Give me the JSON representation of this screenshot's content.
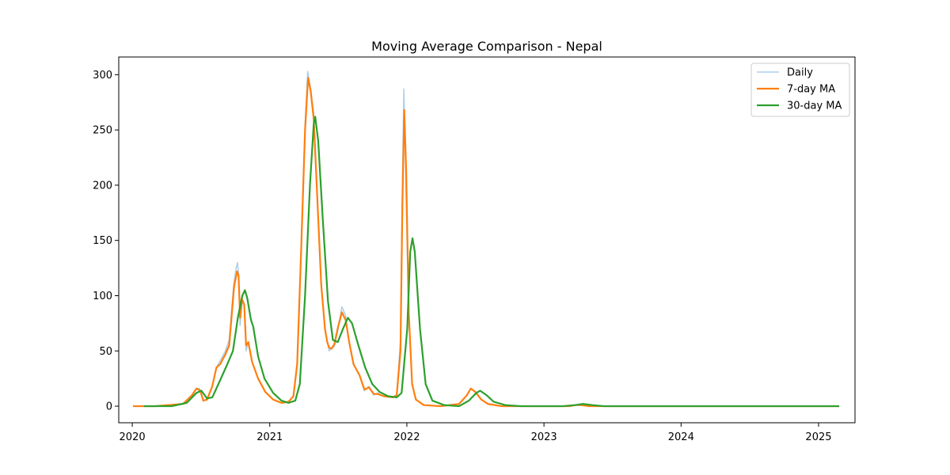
{
  "chart_data": {
    "type": "line",
    "title": "Moving Average Comparison - Nepal",
    "xlabel": "",
    "ylabel": "",
    "x_ticks": [
      "2020",
      "2021",
      "2022",
      "2023",
      "2024",
      "2025"
    ],
    "y_ticks": [
      0,
      50,
      100,
      150,
      200,
      250,
      300
    ],
    "xlim": [
      "2019-11-26",
      "2025-04-08"
    ],
    "ylim": [
      -15,
      316
    ],
    "grid": false,
    "legend_position": "top-right",
    "series": [
      {
        "name": "Daily",
        "color": "#aecde8",
        "points": [
          [
            "2020-01-03",
            0
          ],
          [
            "2020-03-01",
            0
          ],
          [
            "2020-05-15",
            2
          ],
          [
            "2020-06-10",
            10
          ],
          [
            "2020-06-20",
            16
          ],
          [
            "2020-06-28",
            16
          ],
          [
            "2020-07-08",
            5
          ],
          [
            "2020-07-18",
            6
          ],
          [
            "2020-08-01",
            18
          ],
          [
            "2020-08-12",
            35
          ],
          [
            "2020-08-25",
            43
          ],
          [
            "2020-09-05",
            50
          ],
          [
            "2020-09-15",
            60
          ],
          [
            "2020-09-27",
            110
          ],
          [
            "2020-10-03",
            124
          ],
          [
            "2020-10-07",
            130
          ],
          [
            "2020-10-10",
            120
          ],
          [
            "2020-10-14",
            73
          ],
          [
            "2020-10-20",
            95
          ],
          [
            "2020-10-25",
            92
          ],
          [
            "2020-10-30",
            50
          ],
          [
            "2020-11-05",
            58
          ],
          [
            "2020-11-15",
            40
          ],
          [
            "2020-12-01",
            25
          ],
          [
            "2020-12-20",
            13
          ],
          [
            "2021-01-10",
            6
          ],
          [
            "2021-02-01",
            3
          ],
          [
            "2021-02-20",
            4
          ],
          [
            "2021-03-05",
            9
          ],
          [
            "2021-03-15",
            40
          ],
          [
            "2021-03-25",
            140
          ],
          [
            "2021-04-05",
            255
          ],
          [
            "2021-04-12",
            303
          ],
          [
            "2021-04-20",
            287
          ],
          [
            "2021-04-28",
            265
          ],
          [
            "2021-05-08",
            185
          ],
          [
            "2021-05-18",
            110
          ],
          [
            "2021-05-28",
            70
          ],
          [
            "2021-06-03",
            60
          ],
          [
            "2021-06-08",
            50
          ],
          [
            "2021-06-14",
            52
          ],
          [
            "2021-06-22",
            54
          ],
          [
            "2021-07-02",
            70
          ],
          [
            "2021-07-12",
            90
          ],
          [
            "2021-07-22",
            82
          ],
          [
            "2021-08-01",
            57
          ],
          [
            "2021-08-12",
            38
          ],
          [
            "2021-08-28",
            28
          ],
          [
            "2021-09-10",
            14
          ],
          [
            "2021-09-22",
            18
          ],
          [
            "2021-10-05",
            10
          ],
          [
            "2021-10-15",
            12
          ],
          [
            "2021-11-01",
            9
          ],
          [
            "2021-11-25",
            8
          ],
          [
            "2021-12-05",
            10
          ],
          [
            "2021-12-15",
            60
          ],
          [
            "2021-12-20",
            200
          ],
          [
            "2021-12-24",
            287
          ],
          [
            "2021-12-28",
            225
          ],
          [
            "2022-01-05",
            90
          ],
          [
            "2022-01-15",
            20
          ],
          [
            "2022-01-25",
            6
          ],
          [
            "2022-02-15",
            1
          ],
          [
            "2022-04-01",
            0
          ],
          [
            "2022-05-20",
            2
          ],
          [
            "2022-06-10",
            10
          ],
          [
            "2022-06-20",
            16
          ],
          [
            "2022-07-02",
            13
          ],
          [
            "2022-07-18",
            6
          ],
          [
            "2022-08-05",
            2
          ],
          [
            "2022-09-10",
            0
          ],
          [
            "2023-03-10",
            0
          ],
          [
            "2023-03-25",
            1
          ],
          [
            "2023-04-10",
            1
          ],
          [
            "2023-05-01",
            0
          ],
          [
            "2025-02-25",
            0
          ]
        ]
      },
      {
        "name": "7-day MA",
        "color": "#ff7f0e",
        "points": [
          [
            "2020-01-03",
            0
          ],
          [
            "2020-03-01",
            0
          ],
          [
            "2020-05-15",
            2
          ],
          [
            "2020-06-08",
            10
          ],
          [
            "2020-06-20",
            16
          ],
          [
            "2020-06-30",
            14
          ],
          [
            "2020-07-08",
            5
          ],
          [
            "2020-07-18",
            6
          ],
          [
            "2020-08-01",
            18
          ],
          [
            "2020-08-12",
            35
          ],
          [
            "2020-08-22",
            38
          ],
          [
            "2020-09-05",
            47
          ],
          [
            "2020-09-15",
            55
          ],
          [
            "2020-09-28",
            108
          ],
          [
            "2020-10-06",
            122
          ],
          [
            "2020-10-10",
            118
          ],
          [
            "2020-10-14",
            80
          ],
          [
            "2020-10-19",
            97
          ],
          [
            "2020-10-25",
            92
          ],
          [
            "2020-10-30",
            55
          ],
          [
            "2020-11-05",
            58
          ],
          [
            "2020-11-15",
            40
          ],
          [
            "2020-12-01",
            25
          ],
          [
            "2020-12-20",
            13
          ],
          [
            "2021-01-10",
            6
          ],
          [
            "2021-02-01",
            3
          ],
          [
            "2021-02-20",
            4
          ],
          [
            "2021-03-05",
            9
          ],
          [
            "2021-03-15",
            38
          ],
          [
            "2021-03-25",
            135
          ],
          [
            "2021-04-05",
            250
          ],
          [
            "2021-04-13",
            297
          ],
          [
            "2021-04-20",
            285
          ],
          [
            "2021-04-28",
            260
          ],
          [
            "2021-05-08",
            185
          ],
          [
            "2021-05-18",
            110
          ],
          [
            "2021-05-28",
            70
          ],
          [
            "2021-06-03",
            58
          ],
          [
            "2021-06-08",
            53
          ],
          [
            "2021-06-14",
            52
          ],
          [
            "2021-06-22",
            56
          ],
          [
            "2021-07-02",
            72
          ],
          [
            "2021-07-12",
            85
          ],
          [
            "2021-07-22",
            78
          ],
          [
            "2021-08-01",
            57
          ],
          [
            "2021-08-12",
            38
          ],
          [
            "2021-08-28",
            28
          ],
          [
            "2021-09-10",
            15
          ],
          [
            "2021-09-22",
            17
          ],
          [
            "2021-10-05",
            11
          ],
          [
            "2021-10-15",
            11
          ],
          [
            "2021-11-01",
            9
          ],
          [
            "2021-11-25",
            8
          ],
          [
            "2021-12-05",
            10
          ],
          [
            "2021-12-15",
            50
          ],
          [
            "2021-12-20",
            180
          ],
          [
            "2021-12-25",
            268
          ],
          [
            "2021-12-30",
            215
          ],
          [
            "2022-01-06",
            85
          ],
          [
            "2022-01-15",
            20
          ],
          [
            "2022-01-25",
            6
          ],
          [
            "2022-02-15",
            1
          ],
          [
            "2022-04-01",
            0
          ],
          [
            "2022-05-20",
            2
          ],
          [
            "2022-06-10",
            10
          ],
          [
            "2022-06-20",
            16
          ],
          [
            "2022-07-02",
            13
          ],
          [
            "2022-07-18",
            6
          ],
          [
            "2022-08-05",
            2
          ],
          [
            "2022-09-10",
            0
          ],
          [
            "2023-03-10",
            0
          ],
          [
            "2023-03-25",
            1
          ],
          [
            "2023-04-10",
            1
          ],
          [
            "2023-05-01",
            0
          ],
          [
            "2025-02-25",
            0
          ]
        ]
      },
      {
        "name": "30-day MA",
        "color": "#2ca02c",
        "points": [
          [
            "2020-02-01",
            0
          ],
          [
            "2020-04-15",
            0
          ],
          [
            "2020-05-25",
            3
          ],
          [
            "2020-06-20",
            12
          ],
          [
            "2020-07-03",
            14
          ],
          [
            "2020-07-18",
            7
          ],
          [
            "2020-08-01",
            8
          ],
          [
            "2020-08-20",
            22
          ],
          [
            "2020-09-10",
            38
          ],
          [
            "2020-09-25",
            50
          ],
          [
            "2020-10-08",
            80
          ],
          [
            "2020-10-20",
            100
          ],
          [
            "2020-10-27",
            105
          ],
          [
            "2020-11-02",
            98
          ],
          [
            "2020-11-12",
            78
          ],
          [
            "2020-11-18",
            72
          ],
          [
            "2020-12-01",
            45
          ],
          [
            "2020-12-18",
            25
          ],
          [
            "2021-01-10",
            12
          ],
          [
            "2021-02-01",
            5
          ],
          [
            "2021-02-20",
            3
          ],
          [
            "2021-03-10",
            5
          ],
          [
            "2021-03-22",
            20
          ],
          [
            "2021-04-05",
            100
          ],
          [
            "2021-04-18",
            200
          ],
          [
            "2021-04-28",
            255
          ],
          [
            "2021-05-02",
            262
          ],
          [
            "2021-05-10",
            240
          ],
          [
            "2021-05-22",
            170
          ],
          [
            "2021-06-05",
            95
          ],
          [
            "2021-06-18",
            60
          ],
          [
            "2021-07-01",
            58
          ],
          [
            "2021-07-15",
            70
          ],
          [
            "2021-07-28",
            80
          ],
          [
            "2021-08-08",
            75
          ],
          [
            "2021-08-25",
            55
          ],
          [
            "2021-09-12",
            35
          ],
          [
            "2021-10-01",
            20
          ],
          [
            "2021-10-20",
            13
          ],
          [
            "2021-11-12",
            9
          ],
          [
            "2021-12-05",
            8
          ],
          [
            "2021-12-18",
            12
          ],
          [
            "2022-01-02",
            70
          ],
          [
            "2022-01-10",
            140
          ],
          [
            "2022-01-16",
            152
          ],
          [
            "2022-01-22",
            140
          ],
          [
            "2022-02-05",
            70
          ],
          [
            "2022-02-20",
            20
          ],
          [
            "2022-03-10",
            5
          ],
          [
            "2022-04-10",
            1
          ],
          [
            "2022-05-20",
            0
          ],
          [
            "2022-06-15",
            5
          ],
          [
            "2022-07-05",
            12
          ],
          [
            "2022-07-15",
            14
          ],
          [
            "2022-08-01",
            10
          ],
          [
            "2022-08-20",
            4
          ],
          [
            "2022-09-20",
            1
          ],
          [
            "2022-11-01",
            0
          ],
          [
            "2023-02-20",
            0
          ],
          [
            "2023-03-25",
            1
          ],
          [
            "2023-04-15",
            2
          ],
          [
            "2023-05-10",
            1
          ],
          [
            "2023-06-10",
            0
          ],
          [
            "2025-02-25",
            0
          ]
        ]
      }
    ]
  }
}
